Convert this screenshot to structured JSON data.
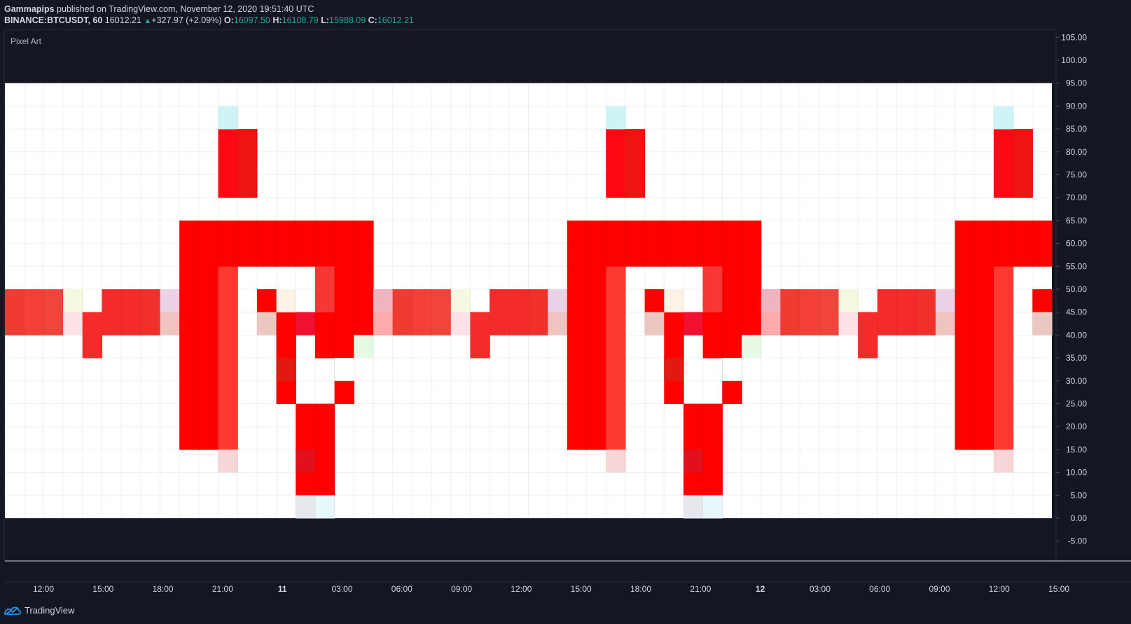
{
  "header": {
    "author": "Gammapips",
    "published_text": "published on TradingView.com, November 12, 2020 19:51:40 UTC",
    "symbol": "BINANCE:BTCUSDT, 60",
    "last": "16012.21",
    "change": "+327.97 (+2.09%)",
    "o_label": "O:",
    "o_value": "16097.50",
    "h_label": "H:",
    "h_value": "16108.79",
    "l_label": "L:",
    "l_value": "15988.09",
    "c_label": "C:",
    "c_value": "16012.21"
  },
  "indicator_label": "Pixel Art",
  "footer": {
    "brand": "TradingView",
    "logo_icon": "tradingview-logo-icon"
  },
  "colors": {
    "background": "#131722",
    "canvas": "#ffffff",
    "pixel": "#ff0000",
    "text": "#d1d4dc",
    "green": "#26a69a"
  },
  "chart_data": {
    "type": "heatmap",
    "title": "Pixel Art",
    "y_ticks": [
      "105.00",
      "100.00",
      "95.00",
      "90.00",
      "85.00",
      "80.00",
      "75.00",
      "70.00",
      "65.00",
      "60.00",
      "55.00",
      "50.00",
      "45.00",
      "40.00",
      "35.00",
      "30.00",
      "25.00",
      "20.00",
      "15.00",
      "10.00",
      "5.00",
      "0.00",
      "-5.00"
    ],
    "ylim": [
      -10,
      105
    ],
    "x_ticks": [
      "12:00",
      "15:00",
      "18:00",
      "21:00",
      "11",
      "03:00",
      "06:00",
      "09:00",
      "12:00",
      "15:00",
      "18:00",
      "21:00",
      "12",
      "03:00",
      "06:00",
      "09:00",
      "12:00",
      "15:00"
    ],
    "bold_x_ticks": [
      "11",
      "12"
    ],
    "cell_height": 5,
    "canvas_y_range": [
      0,
      95
    ],
    "columns": 54,
    "colored_cells": [
      {
        "col": 0,
        "y0": 40,
        "y1": 50,
        "c": "#f03a32"
      },
      {
        "col": 1,
        "y0": 40,
        "y1": 50,
        "c": "#f5403a"
      },
      {
        "col": 2,
        "y0": 40,
        "y1": 50,
        "c": "#f0443c"
      },
      {
        "col": 3,
        "y0": 45,
        "y1": 50,
        "c": "#f3fae0"
      },
      {
        "col": 3,
        "y0": 40,
        "y1": 45,
        "c": "#ffe2e6"
      },
      {
        "col": 4,
        "y0": 35,
        "y1": 45,
        "c": "#f52a2a"
      },
      {
        "col": 5,
        "y0": 40,
        "y1": 50,
        "c": "#f52a2a"
      },
      {
        "col": 6,
        "y0": 40,
        "y1": 50,
        "c": "#f52a2a"
      },
      {
        "col": 7,
        "y0": 40,
        "y1": 50,
        "c": "#f0302a"
      },
      {
        "col": 8,
        "y0": 45,
        "y1": 50,
        "c": "#ecd2e6"
      },
      {
        "col": 8,
        "y0": 40,
        "y1": 45,
        "c": "#f0c2c0"
      },
      {
        "col": 9,
        "y0": 15,
        "y1": 65,
        "c": "#ff0000"
      },
      {
        "col": 10,
        "y0": 15,
        "y1": 65,
        "c": "#ff0000"
      },
      {
        "col": 11,
        "y0": 15,
        "y1": 55,
        "c": "#fd3a30"
      },
      {
        "col": 11,
        "y0": 55,
        "y1": 65,
        "c": "#ff0000"
      },
      {
        "col": 11,
        "y0": 10,
        "y1": 15,
        "c": "#f6d6d6"
      },
      {
        "col": 11,
        "y0": 70,
        "y1": 85,
        "c": "#ff0a14"
      },
      {
        "col": 11,
        "y0": 85,
        "y1": 90,
        "c": "#cef4f6"
      },
      {
        "col": 12,
        "y0": 55,
        "y1": 65,
        "c": "#ff0000"
      },
      {
        "col": 12,
        "y0": 70,
        "y1": 85,
        "c": "#ee1410"
      },
      {
        "col": 13,
        "y0": 55,
        "y1": 65,
        "c": "#ff0000"
      },
      {
        "col": 13,
        "y0": 45,
        "y1": 50,
        "c": "#ff0000"
      },
      {
        "col": 13,
        "y0": 40,
        "y1": 45,
        "c": "#ecc6c0"
      },
      {
        "col": 14,
        "y0": 55,
        "y1": 65,
        "c": "#ff0000"
      },
      {
        "col": 14,
        "y0": 25,
        "y1": 45,
        "c": "#ff0000"
      },
      {
        "col": 14,
        "y0": 45,
        "y1": 50,
        "c": "#fdf2e6"
      },
      {
        "col": 14,
        "y0": 30,
        "y1": 35,
        "c": "#e01a10"
      },
      {
        "col": 15,
        "y0": 55,
        "y1": 65,
        "c": "#ff0000"
      },
      {
        "col": 15,
        "y0": 40,
        "y1": 45,
        "c": "#f01030"
      },
      {
        "col": 15,
        "y0": 5,
        "y1": 25,
        "c": "#ff0000"
      },
      {
        "col": 15,
        "y0": 10,
        "y1": 15,
        "c": "#e0101c"
      },
      {
        "col": 15,
        "y0": 0,
        "y1": 5,
        "c": "#e6e8ee"
      },
      {
        "col": 16,
        "y0": 35,
        "y1": 65,
        "c": "#ff0000"
      },
      {
        "col": 16,
        "y0": 45,
        "y1": 55,
        "c": "#f83636"
      },
      {
        "col": 16,
        "y0": 5,
        "y1": 25,
        "c": "#ff0000"
      },
      {
        "col": 16,
        "y0": 0,
        "y1": 5,
        "c": "#e8f8fa"
      },
      {
        "col": 17,
        "y0": 25,
        "y1": 65,
        "c": "#ff0000"
      },
      {
        "col": 17,
        "y0": 25,
        "y1": 35,
        "c": "#ffffff"
      },
      {
        "col": 17,
        "y0": 25,
        "y1": 30,
        "c": "#ff0000"
      },
      {
        "col": 18,
        "y0": 40,
        "y1": 65,
        "c": "#ff0000"
      },
      {
        "col": 18,
        "y0": 35,
        "y1": 40,
        "c": "#e6f8e6"
      },
      {
        "col": 19,
        "y0": 45,
        "y1": 50,
        "c": "#f0b4c0"
      },
      {
        "col": 19,
        "y0": 40,
        "y1": 45,
        "c": "#ffaaaa"
      },
      {
        "col": 20,
        "y0": 40,
        "y1": 50,
        "c": "#f03a32"
      },
      {
        "col": 21,
        "y0": 40,
        "y1": 50,
        "c": "#f5403a"
      },
      {
        "col": 22,
        "y0": 40,
        "y1": 50,
        "c": "#f0443c"
      },
      {
        "col": 23,
        "y0": 45,
        "y1": 50,
        "c": "#f3fae0"
      },
      {
        "col": 23,
        "y0": 40,
        "y1": 45,
        "c": "#ffe2e6"
      },
      {
        "col": 24,
        "y0": 35,
        "y1": 45,
        "c": "#f52a2a"
      },
      {
        "col": 25,
        "y0": 40,
        "y1": 50,
        "c": "#f52a2a"
      },
      {
        "col": 26,
        "y0": 40,
        "y1": 50,
        "c": "#f52a2a"
      },
      {
        "col": 27,
        "y0": 40,
        "y1": 50,
        "c": "#f0302a"
      },
      {
        "col": 28,
        "y0": 45,
        "y1": 50,
        "c": "#ecd2e6"
      },
      {
        "col": 28,
        "y0": 40,
        "y1": 45,
        "c": "#f0c2c0"
      },
      {
        "col": 29,
        "y0": 15,
        "y1": 65,
        "c": "#ff0000"
      },
      {
        "col": 30,
        "y0": 15,
        "y1": 65,
        "c": "#ff0000"
      },
      {
        "col": 31,
        "y0": 15,
        "y1": 55,
        "c": "#fd3a30"
      },
      {
        "col": 31,
        "y0": 55,
        "y1": 65,
        "c": "#ff0000"
      },
      {
        "col": 31,
        "y0": 10,
        "y1": 15,
        "c": "#f6d6d6"
      },
      {
        "col": 31,
        "y0": 70,
        "y1": 85,
        "c": "#ff0a14"
      },
      {
        "col": 31,
        "y0": 85,
        "y1": 90,
        "c": "#cef4f6"
      },
      {
        "col": 32,
        "y0": 55,
        "y1": 65,
        "c": "#ff0000"
      },
      {
        "col": 32,
        "y0": 70,
        "y1": 85,
        "c": "#ee1410"
      },
      {
        "col": 33,
        "y0": 55,
        "y1": 65,
        "c": "#ff0000"
      },
      {
        "col": 33,
        "y0": 45,
        "y1": 50,
        "c": "#ff0000"
      },
      {
        "col": 33,
        "y0": 40,
        "y1": 45,
        "c": "#ecc6c0"
      },
      {
        "col": 34,
        "y0": 55,
        "y1": 65,
        "c": "#ff0000"
      },
      {
        "col": 34,
        "y0": 25,
        "y1": 45,
        "c": "#ff0000"
      },
      {
        "col": 34,
        "y0": 45,
        "y1": 50,
        "c": "#fdf2e6"
      },
      {
        "col": 34,
        "y0": 30,
        "y1": 35,
        "c": "#e01a10"
      },
      {
        "col": 35,
        "y0": 55,
        "y1": 65,
        "c": "#ff0000"
      },
      {
        "col": 35,
        "y0": 40,
        "y1": 45,
        "c": "#f01030"
      },
      {
        "col": 35,
        "y0": 5,
        "y1": 25,
        "c": "#ff0000"
      },
      {
        "col": 35,
        "y0": 10,
        "y1": 15,
        "c": "#e0101c"
      },
      {
        "col": 35,
        "y0": 0,
        "y1": 5,
        "c": "#e6e8ee"
      },
      {
        "col": 36,
        "y0": 35,
        "y1": 65,
        "c": "#ff0000"
      },
      {
        "col": 36,
        "y0": 45,
        "y1": 55,
        "c": "#f83636"
      },
      {
        "col": 36,
        "y0": 5,
        "y1": 25,
        "c": "#ff0000"
      },
      {
        "col": 36,
        "y0": 0,
        "y1": 5,
        "c": "#e8f8fa"
      },
      {
        "col": 37,
        "y0": 25,
        "y1": 65,
        "c": "#ff0000"
      },
      {
        "col": 37,
        "y0": 25,
        "y1": 35,
        "c": "#ffffff"
      },
      {
        "col": 37,
        "y0": 25,
        "y1": 30,
        "c": "#ff0000"
      },
      {
        "col": 38,
        "y0": 40,
        "y1": 65,
        "c": "#ff0000"
      },
      {
        "col": 38,
        "y0": 35,
        "y1": 40,
        "c": "#e6f8e6"
      },
      {
        "col": 39,
        "y0": 45,
        "y1": 50,
        "c": "#f0b4c0"
      },
      {
        "col": 39,
        "y0": 40,
        "y1": 45,
        "c": "#ffaaaa"
      },
      {
        "col": 40,
        "y0": 40,
        "y1": 50,
        "c": "#f03a32"
      },
      {
        "col": 41,
        "y0": 40,
        "y1": 50,
        "c": "#f5403a"
      },
      {
        "col": 42,
        "y0": 40,
        "y1": 50,
        "c": "#f0443c"
      },
      {
        "col": 43,
        "y0": 45,
        "y1": 50,
        "c": "#f3fae0"
      },
      {
        "col": 43,
        "y0": 40,
        "y1": 45,
        "c": "#ffe2e6"
      },
      {
        "col": 44,
        "y0": 35,
        "y1": 45,
        "c": "#f52a2a"
      },
      {
        "col": 45,
        "y0": 40,
        "y1": 50,
        "c": "#f52a2a"
      },
      {
        "col": 46,
        "y0": 40,
        "y1": 50,
        "c": "#f52a2a"
      },
      {
        "col": 47,
        "y0": 40,
        "y1": 50,
        "c": "#f0302a"
      },
      {
        "col": 48,
        "y0": 45,
        "y1": 50,
        "c": "#ecd2e6"
      },
      {
        "col": 48,
        "y0": 40,
        "y1": 45,
        "c": "#f0c2c0"
      },
      {
        "col": 49,
        "y0": 15,
        "y1": 65,
        "c": "#ff0000"
      },
      {
        "col": 50,
        "y0": 15,
        "y1": 65,
        "c": "#ff0000"
      },
      {
        "col": 51,
        "y0": 15,
        "y1": 55,
        "c": "#fd3a30"
      },
      {
        "col": 51,
        "y0": 55,
        "y1": 65,
        "c": "#ff0000"
      },
      {
        "col": 51,
        "y0": 10,
        "y1": 15,
        "c": "#f6d6d6"
      },
      {
        "col": 51,
        "y0": 70,
        "y1": 85,
        "c": "#ff0a14"
      },
      {
        "col": 51,
        "y0": 85,
        "y1": 90,
        "c": "#cef4f6"
      },
      {
        "col": 52,
        "y0": 55,
        "y1": 65,
        "c": "#ff0000"
      },
      {
        "col": 52,
        "y0": 70,
        "y1": 85,
        "c": "#ee1410"
      },
      {
        "col": 53,
        "y0": 55,
        "y1": 65,
        "c": "#ff0000"
      },
      {
        "col": 53,
        "y0": 45,
        "y1": 50,
        "c": "#ff0000"
      },
      {
        "col": 53,
        "y0": 40,
        "y1": 45,
        "c": "#ecc6c0"
      }
    ]
  }
}
